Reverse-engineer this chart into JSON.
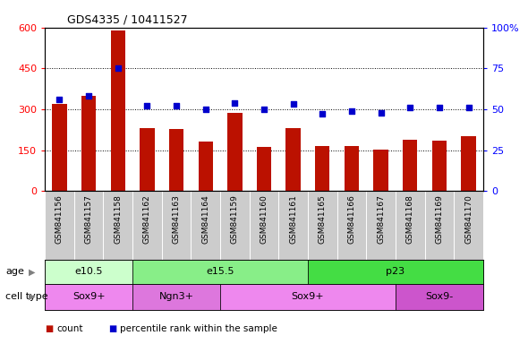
{
  "title": "GDS4335 / 10411527",
  "samples": [
    "GSM841156",
    "GSM841157",
    "GSM841158",
    "GSM841162",
    "GSM841163",
    "GSM841164",
    "GSM841159",
    "GSM841160",
    "GSM841161",
    "GSM841165",
    "GSM841166",
    "GSM841167",
    "GSM841168",
    "GSM841169",
    "GSM841170"
  ],
  "counts": [
    320,
    350,
    590,
    230,
    228,
    180,
    285,
    163,
    230,
    165,
    165,
    152,
    188,
    183,
    200
  ],
  "percentile_ranks": [
    56,
    58,
    75,
    52,
    52,
    50,
    54,
    50,
    53,
    47,
    49,
    48,
    51,
    51,
    51
  ],
  "ylim_left": [
    0,
    600
  ],
  "ylim_right": [
    0,
    100
  ],
  "yticks_left": [
    0,
    150,
    300,
    450,
    600
  ],
  "yticks_right": [
    0,
    25,
    50,
    75,
    100
  ],
  "bar_color": "#bb1100",
  "dot_color": "#0000cc",
  "age_groups": [
    {
      "label": "e10.5",
      "start": 0,
      "end": 3,
      "color": "#ccffcc"
    },
    {
      "label": "e15.5",
      "start": 3,
      "end": 9,
      "color": "#88ee88"
    },
    {
      "label": "p23",
      "start": 9,
      "end": 15,
      "color": "#44dd44"
    }
  ],
  "cell_type_groups": [
    {
      "label": "Sox9+",
      "start": 0,
      "end": 3,
      "color": "#ee88ee"
    },
    {
      "label": "Ngn3+",
      "start": 3,
      "end": 6,
      "color": "#dd77dd"
    },
    {
      "label": "Sox9+",
      "start": 6,
      "end": 12,
      "color": "#ee88ee"
    },
    {
      "label": "Sox9-",
      "start": 12,
      "end": 15,
      "color": "#cc55cc"
    }
  ],
  "legend_count_label": "count",
  "legend_pct_label": "percentile rank within the sample",
  "tick_bg": "#cccccc",
  "plot_bg": "#ffffff",
  "fig_bg": "#ffffff"
}
